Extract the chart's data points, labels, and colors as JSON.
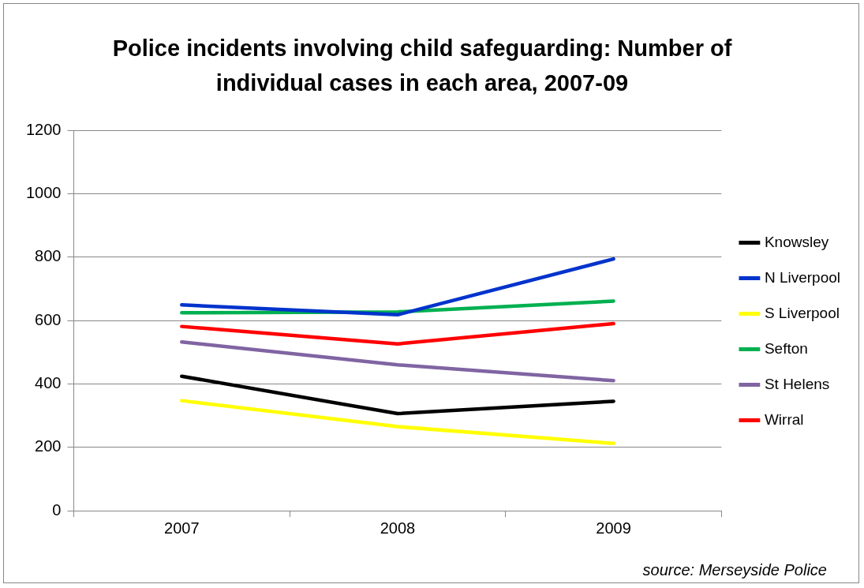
{
  "chart_data": {
    "type": "line",
    "title": "Police incidents involving child safeguarding:  Number of  individual cases in each area, 2007-09",
    "categories": [
      "2007",
      "2008",
      "2009"
    ],
    "series": [
      {
        "name": "Knowsley",
        "color": "#000000",
        "values": [
          424,
          306,
          345
        ]
      },
      {
        "name": "N Liverpool",
        "color": "#0033cc",
        "values": [
          649,
          618,
          794
        ]
      },
      {
        "name": "S Liverpool",
        "color": "#ffff00",
        "values": [
          347,
          265,
          212
        ]
      },
      {
        "name": "Sefton",
        "color": "#00b050",
        "values": [
          624,
          627,
          661
        ]
      },
      {
        "name": "St Helens",
        "color": "#8064a2",
        "values": [
          532,
          460,
          410
        ]
      },
      {
        "name": "Wirral",
        "color": "#ff0000",
        "values": [
          581,
          526,
          590
        ]
      }
    ],
    "ylim": [
      0,
      1200
    ],
    "yticks": [
      0,
      200,
      400,
      600,
      800,
      1000,
      1200
    ],
    "grid": "y",
    "legend": "right",
    "marker": "none",
    "line_style": "solid",
    "annotations": [
      "source: Merseyside Police"
    ]
  }
}
